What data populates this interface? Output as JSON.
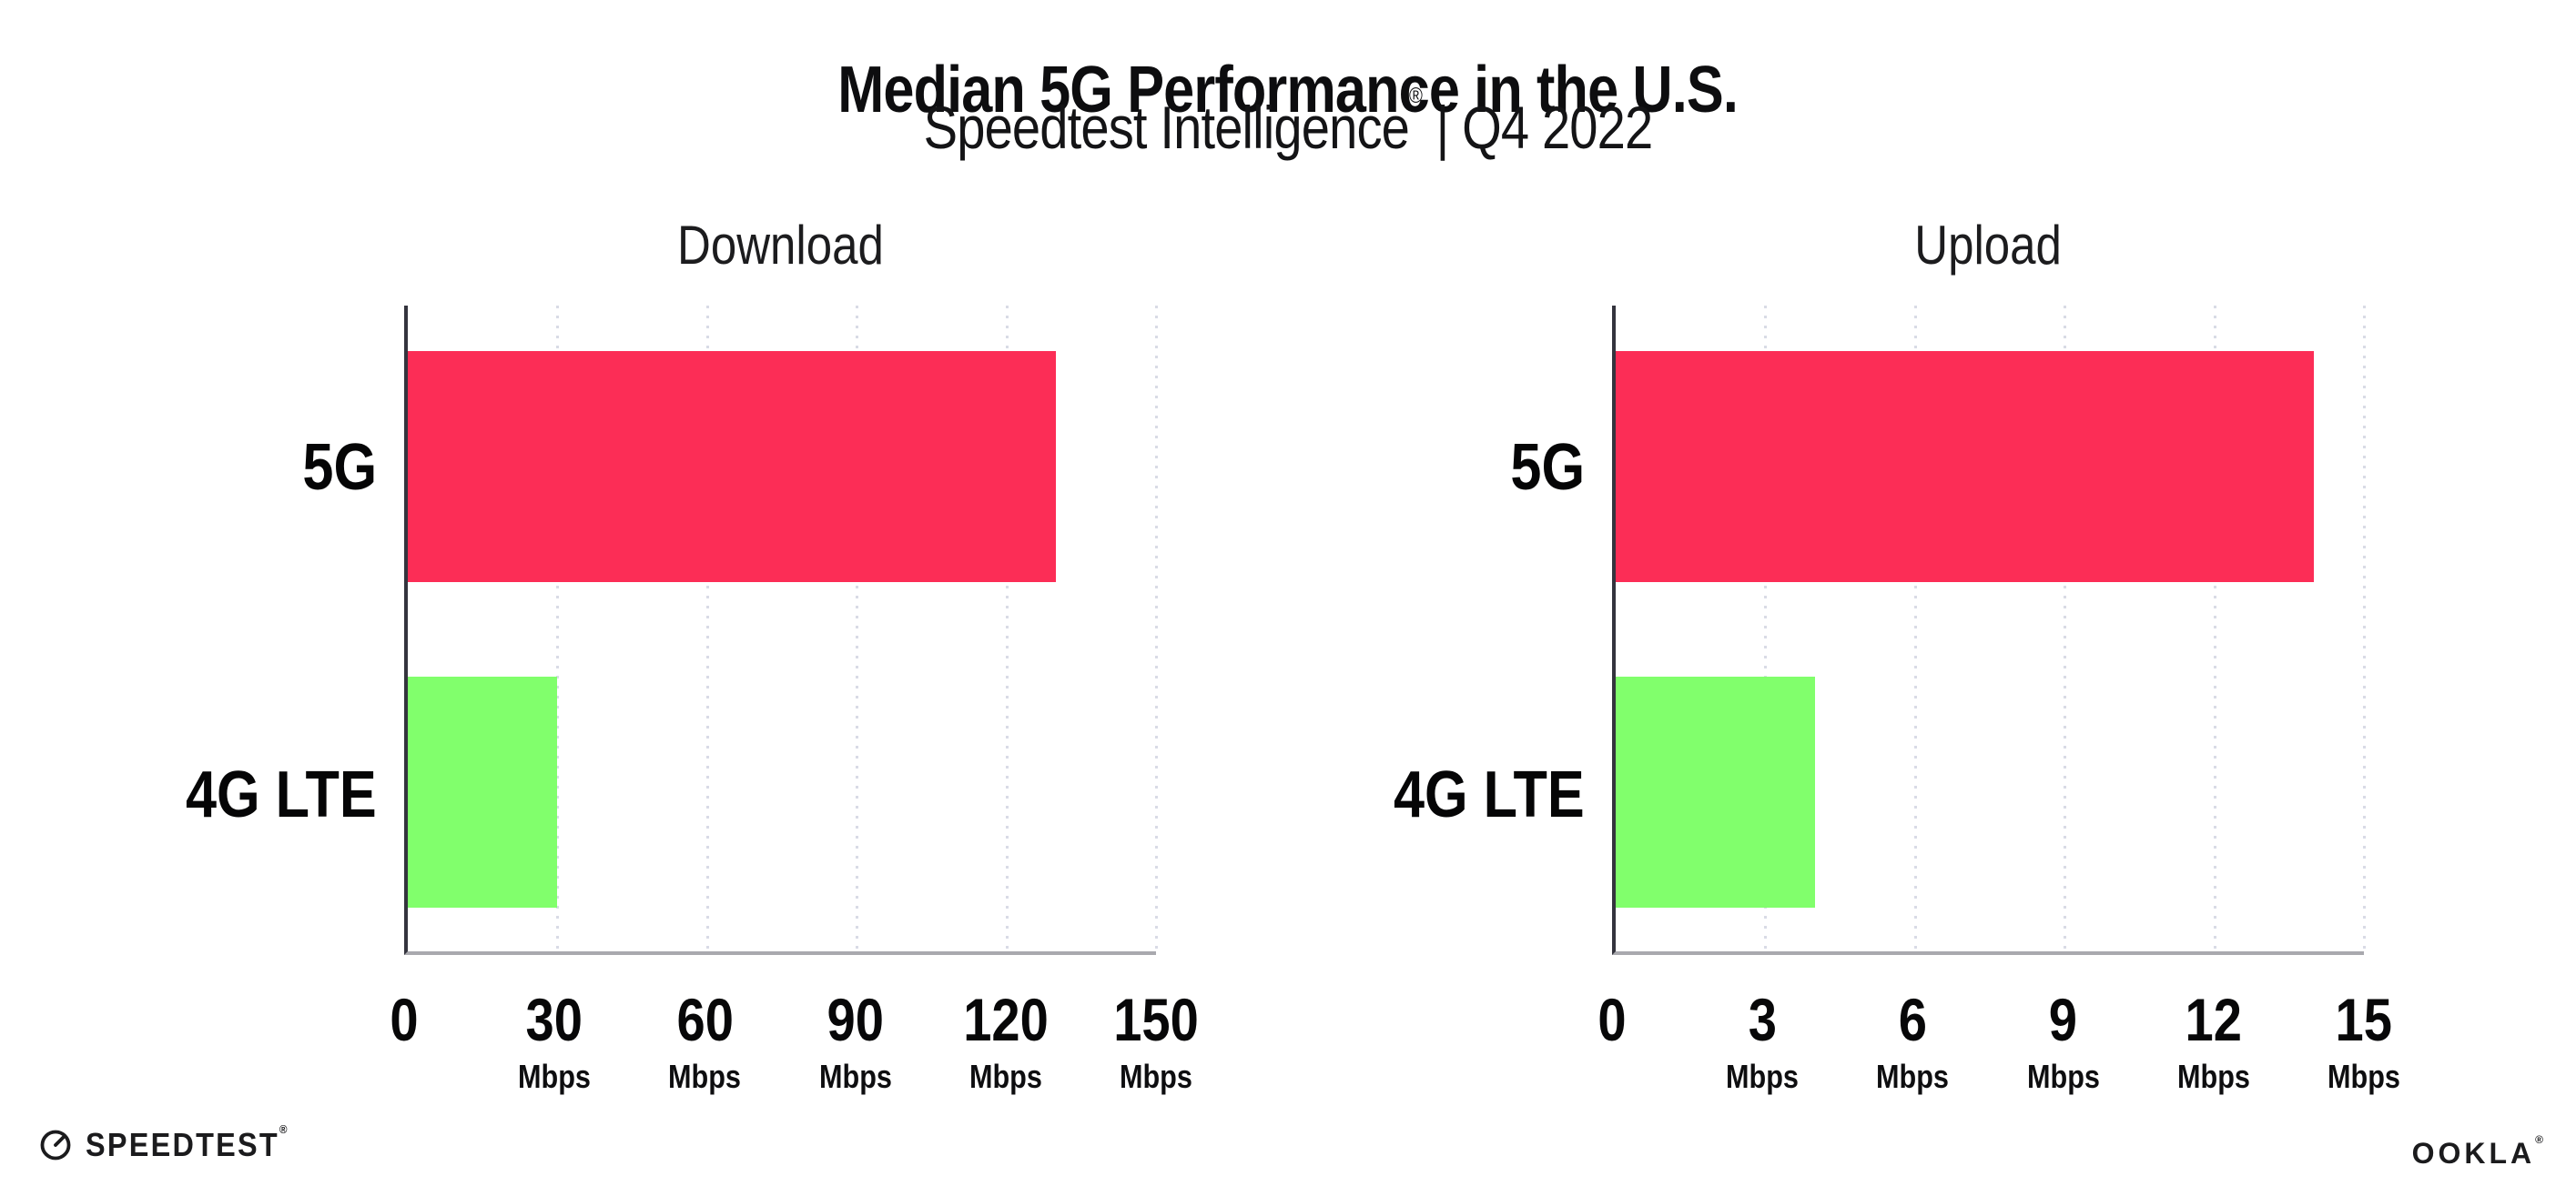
{
  "header": {
    "title": "Median 5G Performance in the U.S.",
    "subtitle": {
      "brand": "Speedtest Intelligence",
      "mark": "®",
      "rest": " | Q4 2022"
    }
  },
  "footer": {
    "speedtest": {
      "label": "SPEEDTEST",
      "mark": "®",
      "icon": "speedtest-gauge-icon"
    },
    "ookla": {
      "label": "OOKLA",
      "mark": "®"
    }
  },
  "colors": {
    "bar_5g": "#FC2D56",
    "bar_4g_lte": "#81FF6C",
    "gridline": "#D9DBE6",
    "y_axis": "#34343E",
    "x_axis": "#A9A9AE",
    "text": "#0D0D0F"
  },
  "chart_data": [
    {
      "type": "bar",
      "orientation": "horizontal",
      "title": "Download",
      "categories": [
        "5G",
        "4G LTE"
      ],
      "values": [
        130,
        30
      ],
      "unit": "Mbps",
      "xlim": [
        0,
        150
      ],
      "xticks": [
        0,
        30,
        60,
        90,
        120,
        150
      ],
      "bar_colors": [
        "#FC2D56",
        "#81FF6C"
      ],
      "grid": "dotted-vertical",
      "legend": "none",
      "xlabel": "",
      "ylabel": ""
    },
    {
      "type": "bar",
      "orientation": "horizontal",
      "title": "Upload",
      "categories": [
        "5G",
        "4G LTE"
      ],
      "values": [
        14,
        4
      ],
      "unit": "Mbps",
      "xlim": [
        0,
        15
      ],
      "xticks": [
        0,
        3,
        6,
        9,
        12,
        15
      ],
      "bar_colors": [
        "#FC2D56",
        "#81FF6C"
      ],
      "grid": "dotted-vertical",
      "legend": "none",
      "xlabel": "",
      "ylabel": ""
    }
  ]
}
